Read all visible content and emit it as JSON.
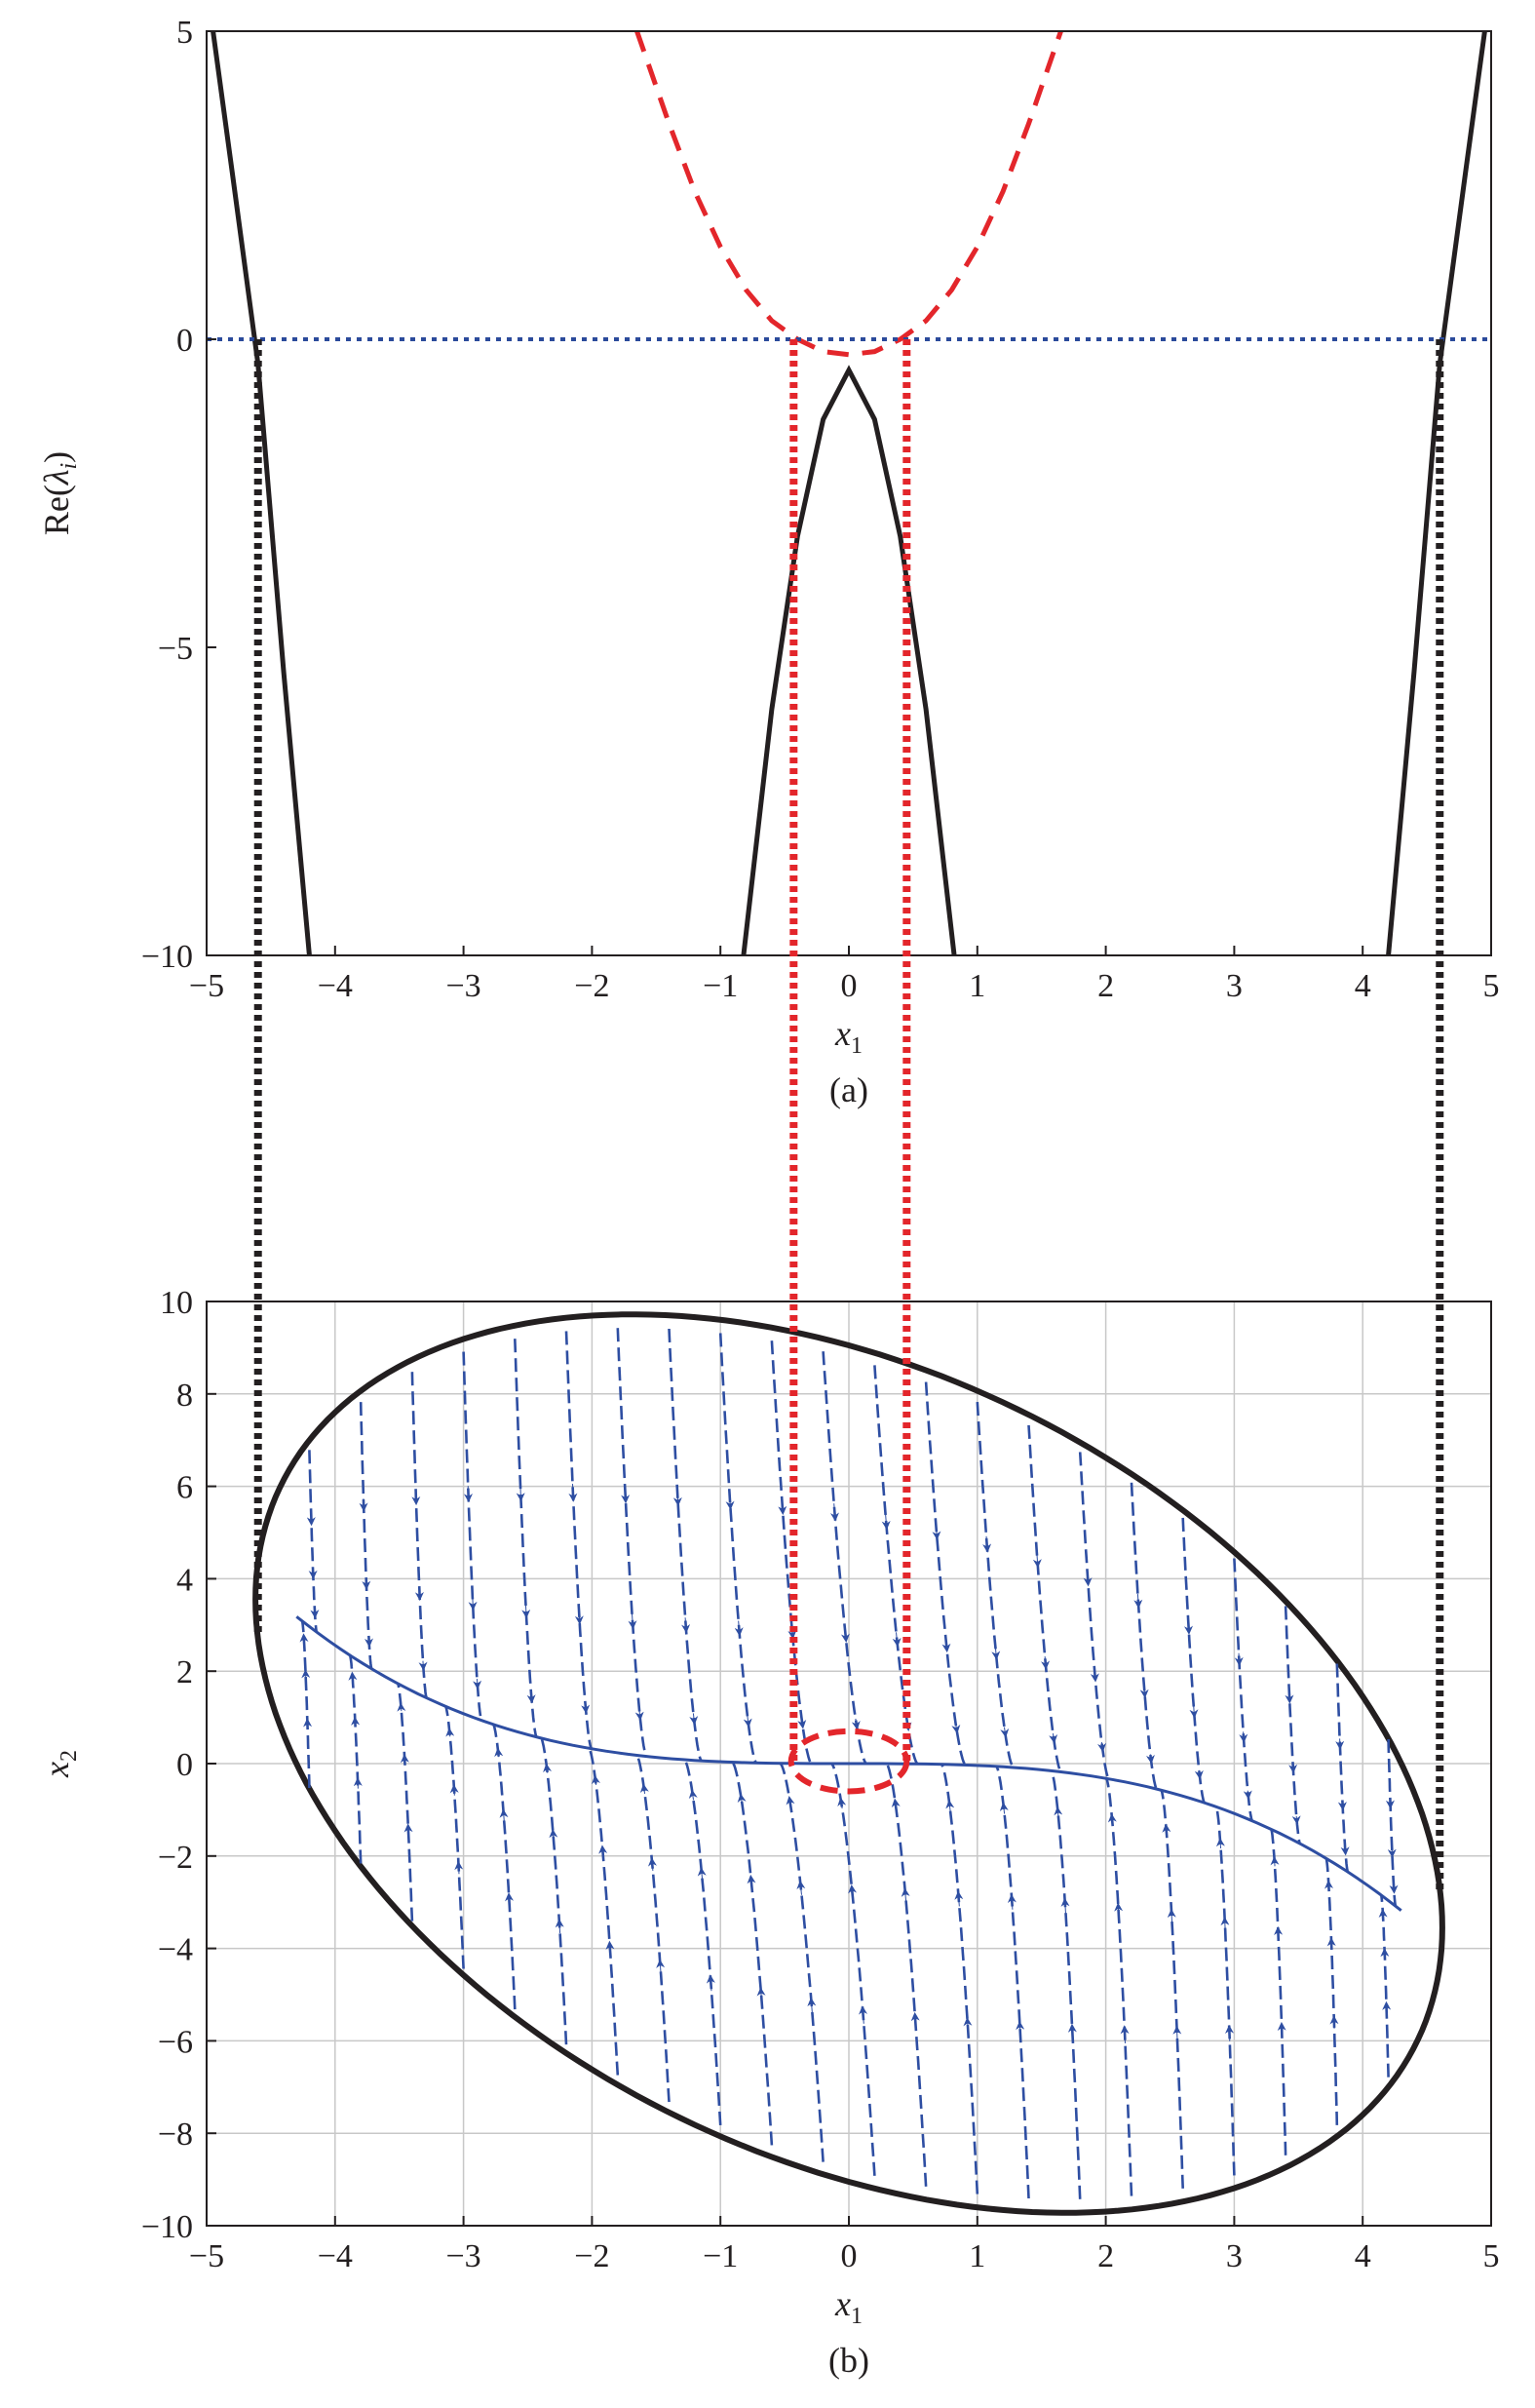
{
  "chart_data": [
    {
      "panel": "a",
      "type": "line",
      "caption": "(a)",
      "xlabel": "x",
      "xlabel_sub": "1",
      "ylabel_prefix": "Re(",
      "ylabel_lambda": "λ",
      "ylabel_sub": "i",
      "ylabel_suffix": ")",
      "xlim": [
        -5,
        5
      ],
      "ylim": [
        -10,
        5
      ],
      "xticks": [
        "−5",
        "−4",
        "−3",
        "−2",
        "−1",
        "0",
        "1",
        "2",
        "3",
        "4",
        "5"
      ],
      "yticks": [
        "−10",
        "−5",
        "0",
        "5"
      ],
      "grid": false,
      "series": [
        {
          "style": "solid",
          "color": "#231f20",
          "x": [
            -4.95,
            -4.8,
            -4.6,
            -4.4,
            -4.2
          ],
          "y": [
            5,
            2.7,
            -0.4,
            -5.4,
            -10
          ]
        },
        {
          "style": "solid",
          "color": "#231f20",
          "x": [
            -0.82,
            -0.6,
            -0.4,
            -0.2,
            0,
            0.2,
            0.4,
            0.6,
            0.82
          ],
          "y": [
            -10,
            -6.0,
            -3.2,
            -1.3,
            -0.5,
            -1.3,
            -3.2,
            -6.0,
            -10
          ]
        },
        {
          "style": "solid",
          "color": "#231f20",
          "x": [
            4.2,
            4.4,
            4.6,
            4.8,
            4.95
          ],
          "y": [
            -10,
            -5.4,
            -0.4,
            2.7,
            5
          ]
        },
        {
          "style": "dashed",
          "color": "#e3262b",
          "x": [
            -1.65,
            -1.4,
            -1.2,
            -1.0,
            -0.8,
            -0.6,
            -0.4,
            -0.2,
            0,
            0.2,
            0.4,
            0.6,
            0.8,
            1.0,
            1.2,
            1.4,
            1.65
          ],
          "y": [
            5,
            3.5,
            2.4,
            1.5,
            0.8,
            0.3,
            0.0,
            -0.2,
            -0.25,
            -0.2,
            0.0,
            0.3,
            0.8,
            1.5,
            2.4,
            3.5,
            5
          ]
        },
        {
          "style": "dotted",
          "color": "#2b4a9b",
          "x": [
            -5,
            5
          ],
          "y": [
            0,
            0
          ]
        }
      ]
    },
    {
      "panel": "b",
      "type": "line",
      "caption": "(b)",
      "xlabel": "x",
      "xlabel_sub": "1",
      "ylabel": "x",
      "ylabel_sub": "2",
      "xlim": [
        -5,
        5
      ],
      "ylim": [
        -10,
        10
      ],
      "xticks": [
        "−5",
        "−4",
        "−3",
        "−2",
        "−1",
        "0",
        "1",
        "2",
        "3",
        "4",
        "5"
      ],
      "yticks": [
        "−10",
        "−8",
        "−6",
        "−4",
        "−2",
        "0",
        "2",
        "4",
        "6",
        "8",
        "10"
      ],
      "grid": true,
      "boundary_ellipse": {
        "x": [
          -4.6,
          -4.0,
          -3.0,
          -2.0,
          -1.6,
          -1.0,
          0.0,
          1.0,
          2.0,
          3.0,
          4.0,
          4.6,
          4.0,
          3.0,
          2.0,
          1.6,
          1.0,
          0.0,
          -1.0,
          -2.0,
          -3.0,
          -4.0,
          -4.6
        ],
        "y": [
          3.0,
          6.5,
          8.9,
          9.6,
          9.7,
          9.5,
          8.6,
          6.7,
          4.4,
          1.4,
          -2.0,
          -4.0,
          -6.5,
          -8.9,
          -9.6,
          -9.7,
          -9.5,
          -8.6,
          -6.7,
          -4.4,
          -1.4,
          2.0,
          3.0
        ]
      },
      "trajectory_color": "#2e4ea2",
      "trajectory_start_x1": [
        -4.2,
        -3.8,
        -3.4,
        -3.0,
        -2.6,
        -2.2,
        -1.8,
        -1.4,
        -1.0,
        -0.6,
        -0.2,
        0.2,
        0.6,
        1.0,
        1.4,
        1.8,
        2.2,
        2.6,
        3.0,
        3.4,
        3.8,
        4.2
      ],
      "overlays": [
        {
          "style": "dotted",
          "color": "#231f20",
          "x": [
            -4.6,
            -4.6
          ],
          "y_top_panel": 0,
          "y_bottom_panel": 2.8
        },
        {
          "style": "dotted",
          "color": "#231f20",
          "x": [
            4.6,
            4.6
          ],
          "y_top_panel": 0,
          "y_bottom_panel": -2.8
        },
        {
          "style": "dotted",
          "color": "#e3262b",
          "x": [
            -0.43,
            -0.43
          ],
          "y_top_panel": 0,
          "y_bottom_panel": 0.0
        },
        {
          "style": "dotted",
          "color": "#e3262b",
          "x": [
            0.45,
            0.45
          ],
          "y_top_panel": 0,
          "y_bottom_panel": 0.0
        },
        {
          "style": "dashed",
          "color": "#e3262b",
          "shape": "small-ellipse",
          "x": [
            -0.45,
            0.45
          ],
          "y": [
            -0.6,
            0.7
          ]
        }
      ]
    }
  ]
}
